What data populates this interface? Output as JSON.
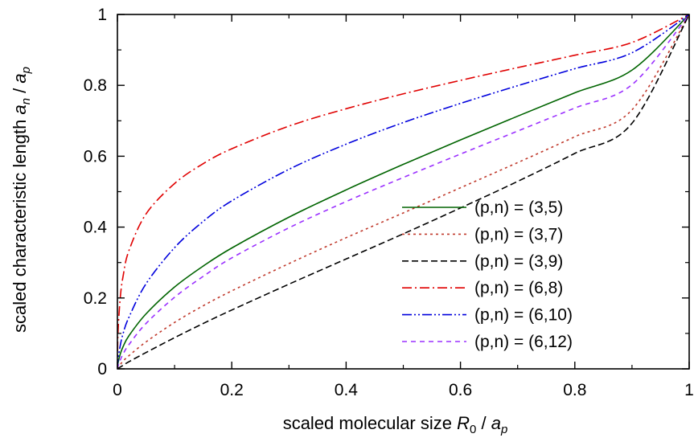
{
  "chart_data": {
    "type": "line",
    "title": "",
    "xlabel": {
      "prefix": "scaled molecular size ",
      "num": "R",
      "num_sub": "0",
      "sep": " / ",
      "den": "a",
      "den_sub": "p"
    },
    "ylabel": {
      "prefix": "scaled characteristic length ",
      "num": "a",
      "num_sub": "n",
      "sep": " / ",
      "den": "a",
      "den_sub": "p"
    },
    "xlim": [
      0,
      1
    ],
    "ylim": [
      0,
      1
    ],
    "xticks": [
      0,
      0.2,
      0.4,
      0.6,
      0.8,
      1
    ],
    "xtick_labels": [
      "0",
      "0.2",
      "0.4",
      "0.6",
      "0.8",
      "1"
    ],
    "yticks": [
      0,
      0.2,
      0.4,
      0.6,
      0.8,
      1
    ],
    "ytick_labels": [
      "0",
      "0.2",
      "0.4",
      "0.6",
      "0.8",
      "1"
    ],
    "grid": false,
    "legend_position": "lower-right",
    "x": [
      0,
      0.001,
      0.005,
      0.01,
      0.02,
      0.05,
      0.1,
      0.15,
      0.2,
      0.3,
      0.4,
      0.5,
      0.6,
      0.7,
      0.8,
      0.9,
      1.0
    ],
    "series": [
      {
        "name": "(p,n) = (3,5)",
        "color": "#006400",
        "dash": "solid",
        "values": [
          0,
          0.016,
          0.042,
          0.063,
          0.093,
          0.155,
          0.231,
          0.29,
          0.341,
          0.428,
          0.505,
          0.577,
          0.646,
          0.713,
          0.779,
          0.843,
          1.0
        ]
      },
      {
        "name": "(p,n) = (3,7)",
        "color": "#c0392b",
        "dash": "dotted",
        "values": [
          0,
          0.003,
          0.012,
          0.022,
          0.037,
          0.076,
          0.131,
          0.178,
          0.22,
          0.297,
          0.37,
          0.44,
          0.511,
          0.582,
          0.655,
          0.731,
          1.0
        ]
      },
      {
        "name": "(p,n) = (3,9)",
        "color": "#000000",
        "dash": "dashed",
        "values": [
          0,
          0.001,
          0.005,
          0.01,
          0.02,
          0.046,
          0.088,
          0.128,
          0.166,
          0.239,
          0.31,
          0.381,
          0.454,
          0.529,
          0.608,
          0.693,
          1.0
        ]
      },
      {
        "name": "(p,n) = (6,8)",
        "color": "#e00000",
        "dash": "dashdot",
        "values": [
          0,
          0.101,
          0.201,
          0.262,
          0.333,
          0.437,
          0.523,
          0.579,
          0.621,
          0.685,
          0.734,
          0.776,
          0.814,
          0.85,
          0.885,
          0.921,
          1.0
        ]
      },
      {
        "name": "(p,n) = (6,10)",
        "color": "#0000dd",
        "dash": "dashdotdot",
        "values": [
          0,
          0.025,
          0.066,
          0.1,
          0.145,
          0.24,
          0.342,
          0.416,
          0.474,
          0.563,
          0.634,
          0.695,
          0.749,
          0.799,
          0.847,
          0.892,
          1.0
        ]
      },
      {
        "name": "(p,n) = (6,12)",
        "color": "#9b30ff",
        "dash": "shortdash",
        "values": [
          0,
          0.007,
          0.025,
          0.042,
          0.068,
          0.128,
          0.202,
          0.261,
          0.313,
          0.398,
          0.472,
          0.54,
          0.606,
          0.671,
          0.736,
          0.802,
          1.0
        ]
      }
    ]
  }
}
